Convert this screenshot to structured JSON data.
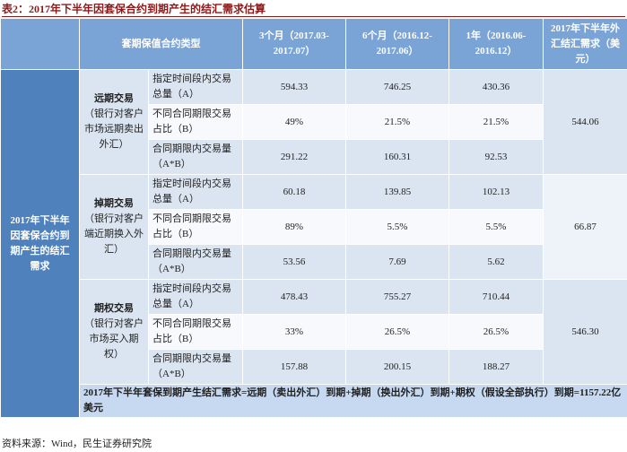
{
  "title": "表2：2017年下半年因套保合约到期产生的结汇需求估算",
  "table": {
    "header": [
      "套期保值合约类型",
      "3个月（2017.03-2017.07）",
      "6个月（2016.12-2017.06）",
      "1年（2016.06-2016.12）",
      "2017年下半年外汇结汇需求（美元）"
    ],
    "side_label": "2017年下半年因套保合约到期产生的结汇需求",
    "groups": [
      {
        "name": "远期交易",
        "note": "（银行对客户市场远期卖出外汇）",
        "rows": [
          {
            "label": "指定时间段内交易总量（A）",
            "values": [
              "594.33",
              "746.25",
              "430.36"
            ]
          },
          {
            "label": "不同合同期限交易占比（B）",
            "values": [
              "49%",
              "21.5%",
              "21.5%"
            ]
          },
          {
            "label": "合同期限内交易量（A*B）",
            "values": [
              "291.22",
              "160.31",
              "92.53"
            ]
          }
        ],
        "total": "544.06"
      },
      {
        "name": "掉期交易",
        "note": "（银行对客户端近期换入外汇）",
        "rows": [
          {
            "label": "指定时间段内交易总量（A）",
            "values": [
              "60.18",
              "139.85",
              "102.13"
            ]
          },
          {
            "label": "不同合同期限交易占比（B）",
            "values": [
              "89%",
              "5.5%",
              "5.5%"
            ]
          },
          {
            "label": "合同期限内交易量（A*B）",
            "values": [
              "53.56",
              "7.69",
              "5.62"
            ]
          }
        ],
        "total": "66.87"
      },
      {
        "name": "期权交易",
        "note": "（银行对客户市场买入期权）",
        "rows": [
          {
            "label": "指定时间段内交易总量（A）",
            "values": [
              "478.43",
              "755.27",
              "710.44"
            ]
          },
          {
            "label": "不同合同期限交易占比（B）",
            "values": [
              "33%",
              "26.5%",
              "26.5%"
            ]
          },
          {
            "label": "合同期限内交易量（A*B）",
            "values": [
              "157.88",
              "200.15",
              "188.27"
            ]
          }
        ],
        "total": "546.30"
      }
    ],
    "summary": "2017年下半年套保到期产生结汇需求=远期（卖出外汇）到期+掉期（换出外汇）到期+期权（假设全部执行）到期=1157.22亿美元"
  },
  "source": "资料来源：Wind，民生证券研究院"
}
